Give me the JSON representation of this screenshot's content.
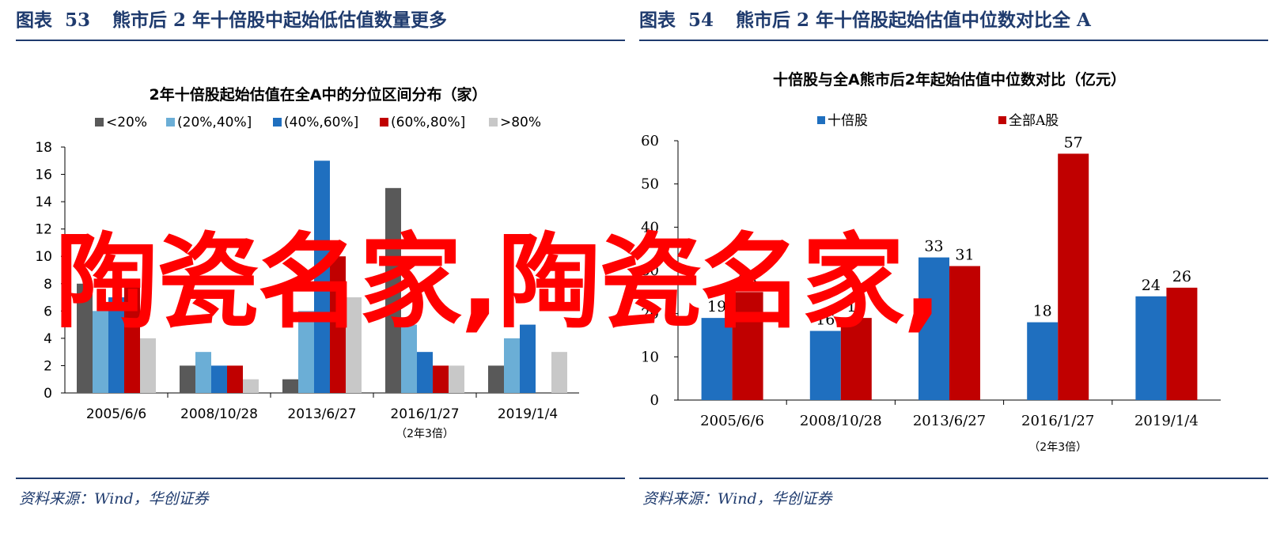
{
  "left": {
    "header_prefix": "图表",
    "header_num": "53",
    "header_title": "熊市后 2 年十倍股中起始低估值数量更多",
    "source": "资料来源：Wind，华创证券"
  },
  "right": {
    "header_prefix": "图表",
    "header_num": "54",
    "header_title": "熊市后 2 年十倍股起始估值中位数对比全 A",
    "source": "资料来源：Wind，华创证券"
  },
  "watermark": "陶瓷名家,陶瓷名家,",
  "colors": {
    "navy": "#1f3b6e",
    "s_lt20": "#595959",
    "s_20_40": "#6baed6",
    "s_40_60": "#1f6fbf",
    "s_60_80": "#c00000",
    "s_gt80": "#c8c8c8",
    "ten_bagger": "#1f6fbf",
    "all_a": "#c00000",
    "watermark": "#ff0000"
  },
  "chart_data": [
    {
      "type": "bar",
      "title": "2年十倍股起始估值在全A中的分位区间分布（家）",
      "categories": [
        "2005/6/6",
        "2008/10/28",
        "2013/6/27",
        "2016/1/27",
        "2019/1/4"
      ],
      "category_sublabels": [
        "",
        "",
        "",
        "（2年3倍）",
        ""
      ],
      "series": [
        {
          "name": "<20%",
          "color": "#595959",
          "values": [
            8,
            2,
            1,
            15,
            2
          ]
        },
        {
          "name": "(20%,40%]",
          "color": "#6baed6",
          "values": [
            6,
            3,
            6,
            5,
            4
          ]
        },
        {
          "name": "(40%,60%]",
          "color": "#1f6fbf",
          "values": [
            7,
            2,
            17,
            3,
            5
          ]
        },
        {
          "name": "(60%,80%]",
          "color": "#c00000",
          "values": [
            8,
            2,
            10,
            2,
            0
          ]
        },
        {
          "name": ">80%",
          "color": "#c8c8c8",
          "values": [
            4,
            1,
            7,
            2,
            3
          ]
        }
      ],
      "ylim": [
        0,
        18
      ],
      "yticks": [
        "0",
        "2",
        "4",
        "6",
        "8",
        "10",
        "12",
        "14",
        "16",
        "18"
      ],
      "legend_position": "top",
      "grid": false
    },
    {
      "type": "bar",
      "title": "十倍股与全A熊市后2年起始估值中位数对比（亿元）",
      "categories": [
        "2005/6/6",
        "2008/10/28",
        "2013/6/27",
        "2016/1/27",
        "2019/1/4"
      ],
      "category_sublabels": [
        "",
        "",
        "",
        "（2年3倍）",
        ""
      ],
      "series": [
        {
          "name": "十倍股",
          "color": "#1f6fbf",
          "values": [
            19,
            16,
            33,
            18,
            24
          ],
          "labels": [
            "19",
            "16",
            "33",
            "18",
            "24"
          ]
        },
        {
          "name": "全部A股",
          "color": "#c00000",
          "values": [
            25,
            19,
            31,
            57,
            26
          ],
          "labels": [
            "25",
            "19",
            "31",
            "57",
            "26"
          ]
        }
      ],
      "ylim": [
        0,
        60
      ],
      "yticks": [
        "0",
        "10",
        "20",
        "30",
        "40",
        "50",
        "60"
      ],
      "legend_position": "top",
      "grid": false
    }
  ]
}
